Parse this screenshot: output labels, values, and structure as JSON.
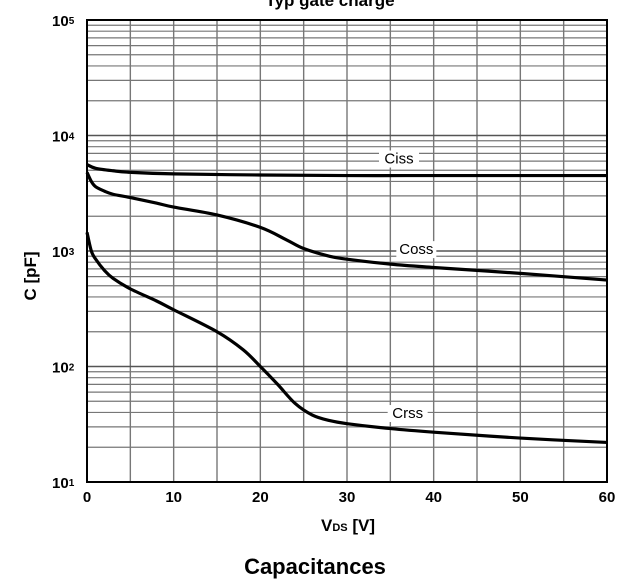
{
  "chart_data": {
    "type": "line",
    "title": "Typ gate charge",
    "xlabel_main": "V",
    "xlabel_sub": "DS",
    "xlabel_unit": " [V]",
    "ylabel": "C [pF]",
    "xlim": [
      0,
      60
    ],
    "ylim": [
      10,
      100000
    ],
    "y_scale": "log",
    "grid": true,
    "x_ticks": [
      "0",
      "10",
      "20",
      "30",
      "40",
      "50",
      "60"
    ],
    "y_ticks": [
      {
        "base": "10",
        "exp": "1"
      },
      {
        "base": "10",
        "exp": "2"
      },
      {
        "base": "10",
        "exp": "3"
      },
      {
        "base": "10",
        "exp": "4"
      },
      {
        "base": "10",
        "exp": "5"
      }
    ],
    "series": [
      {
        "name": "Ciss",
        "x": [
          0,
          1,
          3,
          5,
          10,
          20,
          30,
          40,
          50,
          60
        ],
        "y": [
          5600,
          5200,
          4950,
          4800,
          4650,
          4550,
          4500,
          4500,
          4500,
          4500
        ]
      },
      {
        "name": "Coss",
        "x": [
          0,
          0.5,
          1,
          2,
          3,
          5,
          8,
          10,
          15,
          20,
          23,
          25,
          28,
          30,
          35,
          40,
          50,
          60
        ],
        "y": [
          4800,
          4000,
          3600,
          3300,
          3100,
          2900,
          2600,
          2400,
          2050,
          1600,
          1250,
          1050,
          900,
          850,
          770,
          720,
          640,
          560
        ]
      },
      {
        "name": "Crss",
        "x": [
          0,
          0.5,
          1,
          2,
          3,
          5,
          8,
          10,
          15,
          18,
          20,
          22,
          24,
          26,
          28,
          30,
          35,
          40,
          50,
          60
        ],
        "y": [
          1450,
          1000,
          850,
          680,
          580,
          470,
          370,
          310,
          200,
          140,
          100,
          70,
          48,
          38,
          34,
          32,
          29,
          27,
          24,
          22
        ]
      }
    ]
  },
  "caption": "Capacitances"
}
